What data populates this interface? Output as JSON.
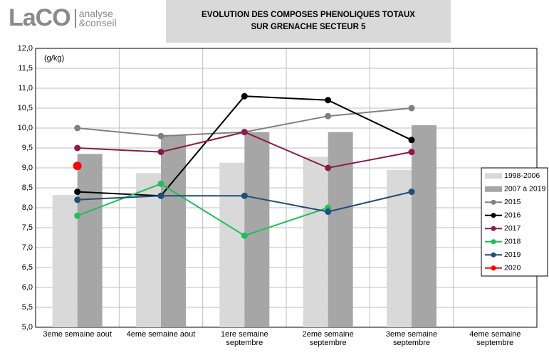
{
  "logo": {
    "brand": "LaCO",
    "lines": [
      "analyse",
      "&conseil"
    ]
  },
  "chart_data": {
    "type": "line",
    "title": [
      "EVOLUTION DES COMPOSES PHENOLIQUES TOTAUX",
      "SUR GRENACHE SECTEUR 5"
    ],
    "unit_label": "(g/kg)",
    "categories": [
      "3eme semaine aout",
      "4eme semaine aout",
      "1ere semaine septembre",
      "2eme semaine septembre",
      "3eme semaine septembre",
      "4eme semaine septembre"
    ],
    "ylim": [
      5,
      12
    ],
    "yticks": [
      {
        "value": 5,
        "label": "5,0"
      },
      {
        "value": 5.5,
        "label": "5,5"
      },
      {
        "value": 6,
        "label": "6,0"
      },
      {
        "value": 6.5,
        "label": "6,5"
      },
      {
        "value": 7,
        "label": "7,0"
      },
      {
        "value": 7.5,
        "label": "7,5"
      },
      {
        "value": 8,
        "label": "8,0"
      },
      {
        "value": 8.5,
        "label": "8,5"
      },
      {
        "value": 9,
        "label": "9,0"
      },
      {
        "value": 9.5,
        "label": "9,5"
      },
      {
        "value": 10,
        "label": "10,0"
      },
      {
        "value": 10.5,
        "label": "10,5"
      },
      {
        "value": 11,
        "label": "11,0"
      },
      {
        "value": 11.5,
        "label": "11,5"
      },
      {
        "value": 12,
        "label": "12,0"
      }
    ],
    "grid": true,
    "legend": "right",
    "series": [
      {
        "name": "1998-2006",
        "kind": "bar",
        "color": "#d9d9d9",
        "values": [
          8.32,
          8.87,
          9.13,
          9.28,
          8.95,
          null
        ]
      },
      {
        "name": "2007 à 2019",
        "kind": "bar",
        "color": "#a6a6a6",
        "values": [
          9.35,
          9.83,
          9.9,
          9.9,
          10.07,
          null
        ]
      },
      {
        "name": "2015",
        "kind": "line",
        "color": "#808080",
        "values": [
          10.0,
          9.8,
          9.9,
          10.3,
          10.5,
          null
        ]
      },
      {
        "name": "2016",
        "kind": "line",
        "color": "#000000",
        "values": [
          8.4,
          8.3,
          10.8,
          10.7,
          9.7,
          null
        ]
      },
      {
        "name": "2017",
        "kind": "line",
        "color": "#8b1a4a",
        "values": [
          9.5,
          9.4,
          9.9,
          9.0,
          9.4,
          null
        ]
      },
      {
        "name": "2018",
        "kind": "line",
        "color": "#1fbf5a",
        "values": [
          7.8,
          8.6,
          7.3,
          8.0,
          null,
          null
        ]
      },
      {
        "name": "2019",
        "kind": "line",
        "color": "#1f4e79",
        "values": [
          8.2,
          8.3,
          8.3,
          7.9,
          8.4,
          null
        ]
      },
      {
        "name": "2020",
        "kind": "line",
        "color": "#ff0000",
        "values": [
          9.05,
          null,
          null,
          null,
          null,
          null
        ]
      }
    ]
  }
}
